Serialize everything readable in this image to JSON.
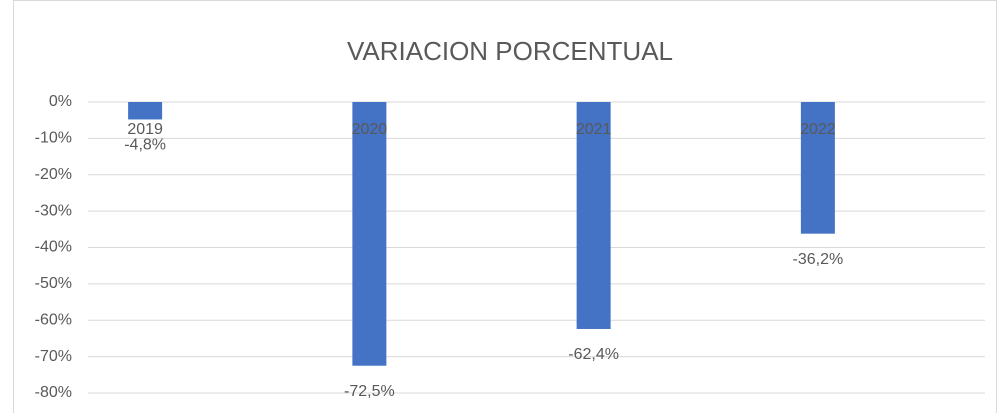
{
  "chart_data": {
    "type": "bar",
    "title": "VARIACION PORCENTUAL",
    "categories": [
      "2019",
      "2020",
      "2021",
      "2022"
    ],
    "values": [
      -4.8,
      -72.5,
      -62.4,
      -36.2
    ],
    "value_labels": [
      "-4,8%",
      "-72,5%",
      "-62,4%",
      "-36,2%"
    ],
    "color": "#4472c4",
    "ylim": [
      -80,
      0
    ],
    "yticks": [
      {
        "value": 0,
        "label": "0%"
      },
      {
        "value": -10,
        "label": "-10%"
      },
      {
        "value": -20,
        "label": "-20%"
      },
      {
        "value": -30,
        "label": "-30%"
      },
      {
        "value": -40,
        "label": "-40%"
      },
      {
        "value": -50,
        "label": "-50%"
      },
      {
        "value": -60,
        "label": "-60%"
      },
      {
        "value": -70,
        "label": "-70%"
      },
      {
        "value": -80,
        "label": "-80%"
      }
    ],
    "grid": true
  }
}
